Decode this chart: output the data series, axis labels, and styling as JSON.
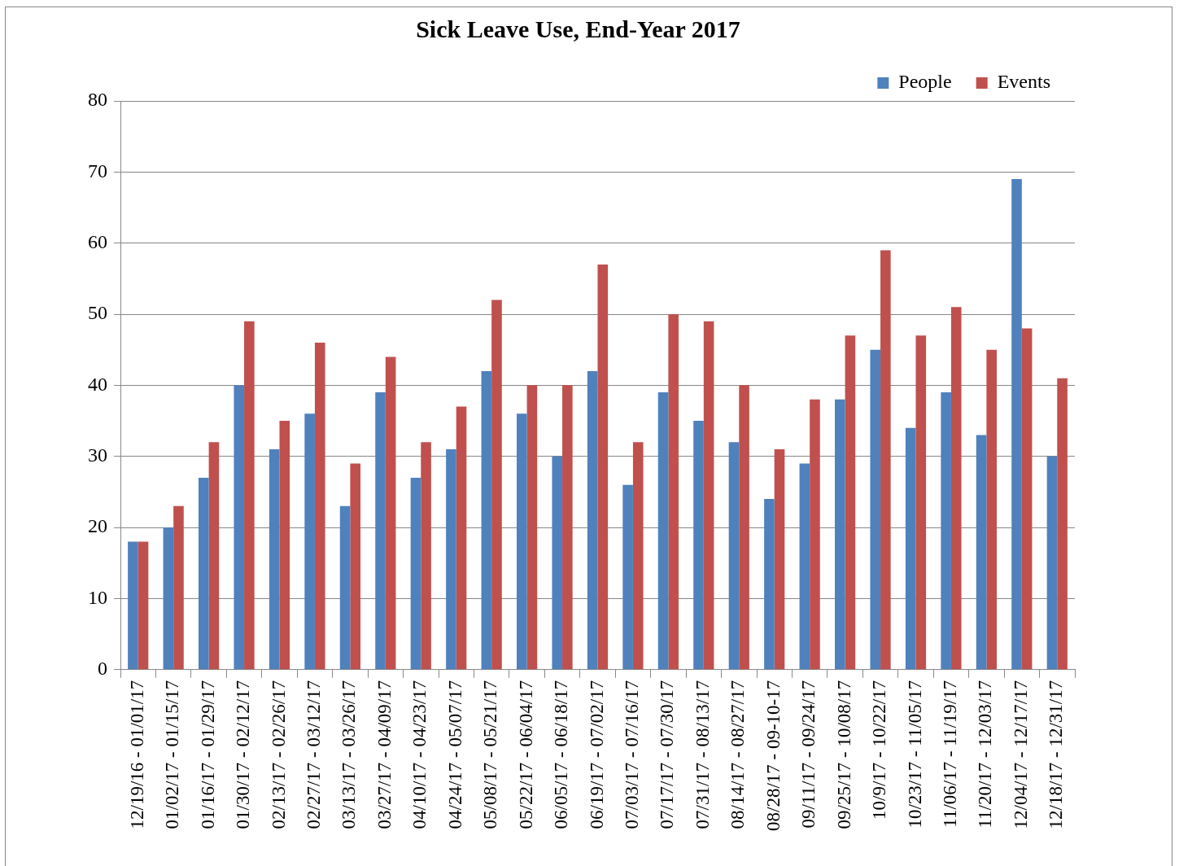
{
  "chart_data": {
    "type": "bar",
    "title": "Sick Leave Use, End-Year 2017",
    "categories": [
      "12/19/16 - 01/01/17",
      "01/02/17 - 01/15/17",
      "01/16/17 - 01/29/17",
      "01/30/17 - 02/12/17",
      "02/13/17 - 02/26/17",
      "02/27/17 - 03/12/17",
      "03/13/17 - 03/26/17",
      "03/27/17 - 04/09/17",
      "04/10/17 - 04/23/17",
      "04/24/17 - 05/07/17",
      "05/08/17 - 05/21/17",
      "05/22/17 - 06/04/17",
      "06/05/17 - 06/18/17",
      "06/19/17 - 07/02/17",
      "07/03/17 - 07/16/17",
      "07/17/17 - 07/30/17",
      "07/31/17 - 08/13/17",
      "08/14/17 - 08/27/17",
      "08/28/17 - 09-10-17",
      "09/11/17 - 09/24/17",
      "09/25/17 - 10/08/17",
      "10/9/17 - 10/22/17",
      "10/23/17 - 11/05/17",
      "11/06/17 - 11/19/17",
      "11/20/17 - 12/03/17",
      "12/04/17 - 12/17/17",
      "12/18/17 - 12/31/17"
    ],
    "series": [
      {
        "name": "People",
        "color": "#4f81bd",
        "values": [
          18,
          20,
          27,
          40,
          31,
          36,
          23,
          39,
          27,
          31,
          42,
          36,
          30,
          42,
          26,
          39,
          35,
          32,
          24,
          29,
          38,
          45,
          34,
          39,
          33,
          69,
          30
        ]
      },
      {
        "name": "Events",
        "color": "#c0504d",
        "values": [
          18,
          23,
          32,
          49,
          35,
          46,
          29,
          44,
          32,
          37,
          52,
          40,
          40,
          57,
          32,
          50,
          49,
          40,
          31,
          38,
          47,
          59,
          47,
          51,
          45,
          48,
          41
        ]
      }
    ],
    "ylim": [
      0,
      80
    ],
    "yticks": [
      0,
      10,
      20,
      30,
      40,
      50,
      60,
      70,
      80
    ],
    "grid": "y",
    "legend": "top right"
  }
}
